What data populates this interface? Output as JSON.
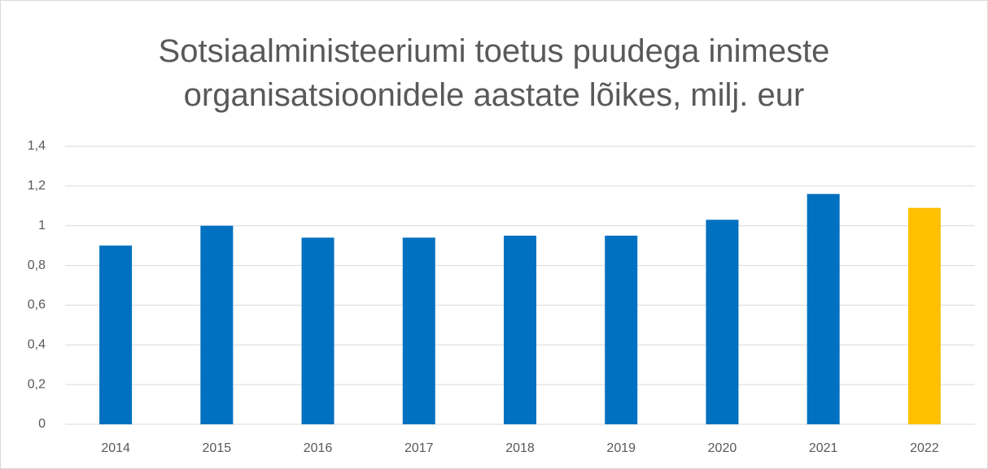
{
  "chart_data": {
    "type": "bar",
    "title": "Sotsiaalministeeriumi toetus puudega inimeste organisatsioonidele aastate lõikes, milj. eur",
    "categories": [
      "2014",
      "2015",
      "2016",
      "2017",
      "2018",
      "2019",
      "2020",
      "2021",
      "2022"
    ],
    "values": [
      0.9,
      1.0,
      0.94,
      0.94,
      0.95,
      0.95,
      1.03,
      1.16,
      1.09
    ],
    "colors": [
      "#0070c0",
      "#0070c0",
      "#0070c0",
      "#0070c0",
      "#0070c0",
      "#0070c0",
      "#0070c0",
      "#0070c0",
      "#ffc000"
    ],
    "ylim": [
      0,
      1.4
    ],
    "yticks": [
      0,
      {
        "value": 0.2,
        "label": "0,2"
      },
      {
        "value": 0.4,
        "label": "0,4"
      },
      {
        "value": 0.6,
        "label": "0,6"
      },
      {
        "value": 0.8,
        "label": "0,8"
      },
      1,
      {
        "value": 1.2,
        "label": "1,2"
      },
      {
        "value": 1.4,
        "label": "1,4"
      }
    ],
    "grid": true
  }
}
